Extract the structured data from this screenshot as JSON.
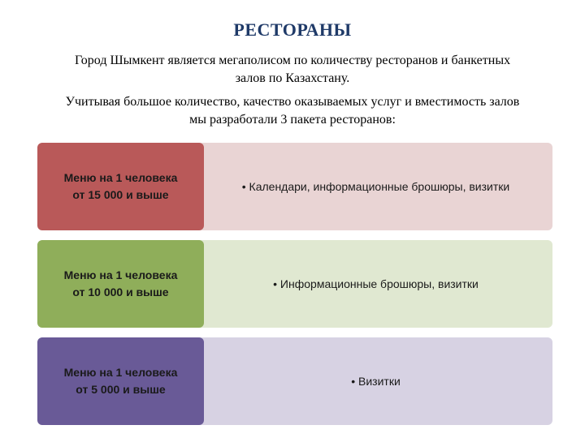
{
  "title": {
    "text": "РЕСТОРАНЫ",
    "color": "#1f3a68",
    "fontsize": 22
  },
  "intro": {
    "paragraphs": [
      "Город Шымкент является мегаполисом по количеству ресторанов и банкетных залов по Казахстану.",
      "Учитывая большое количество, качество оказываемых услуг и вместимость залов мы разработали 3 пакета ресторанов:"
    ],
    "color": "#000000",
    "fontsize": 16
  },
  "packages": {
    "label_fontsize": 14,
    "desc_fontsize": 14,
    "items": [
      {
        "label_line1": "Меню на 1 человека",
        "label_line2": "от 15 000 и выше",
        "desc": "• Календари, информационные брошюры, визитки",
        "left_bg": "#b95959",
        "right_bg": "#e9d4d4"
      },
      {
        "label_line1": "Меню на 1 человека",
        "label_line2": "от 10 000 и выше",
        "desc": "• Информационные брошюры, визитки",
        "left_bg": "#8fae5a",
        "right_bg": "#e0e8d1"
      },
      {
        "label_line1": "Меню на 1 человека",
        "label_line2": "от 5 000 и выше",
        "desc": "• Визитки",
        "left_bg": "#695a97",
        "right_bg": "#d7d2e3"
      }
    ]
  },
  "background_color": "#ffffff"
}
